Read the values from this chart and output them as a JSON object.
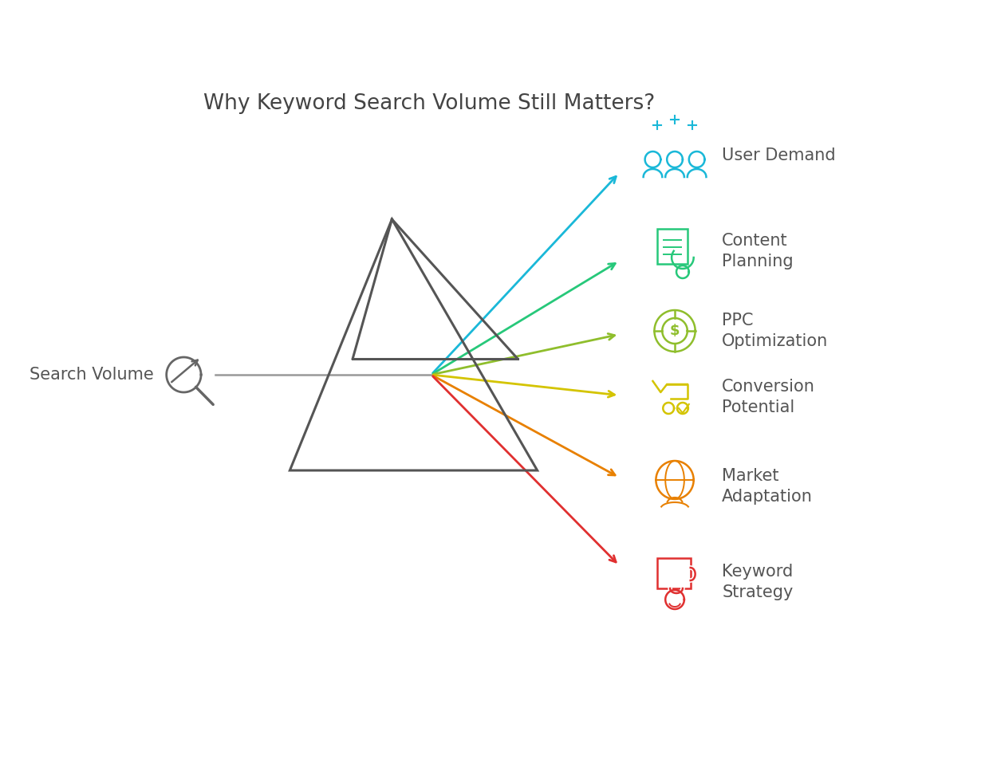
{
  "title": "Why Keyword Search Volume Still Matters?",
  "title_fontsize": 19,
  "title_color": "#444444",
  "background_color": "#ffffff",
  "prism_color": "#555555",
  "prism_linewidth": 2.2,
  "beam_color": "#999999",
  "beam_linewidth": 1.8,
  "rays": [
    {
      "color": "#1ab8d8",
      "label": "User Demand"
    },
    {
      "color": "#27c87a",
      "label": "Content\nPlanning"
    },
    {
      "color": "#8fbe2c",
      "label": "PPC\nOptimization"
    },
    {
      "color": "#d4c400",
      "label": "Conversion\nPotential"
    },
    {
      "color": "#e88000",
      "label": "Market\nAdaptation"
    },
    {
      "color": "#e03030",
      "label": "Keyword\nStrategy"
    }
  ],
  "icon_colors": [
    "#1ab8d8",
    "#27c87a",
    "#8fbe2c",
    "#d4c400",
    "#e88000",
    "#e03030"
  ],
  "label_fontsize": 15,
  "label_color": "#555555",
  "search_volume_label": "Search Volume",
  "search_volume_fontsize": 15,
  "search_volume_color": "#555555"
}
